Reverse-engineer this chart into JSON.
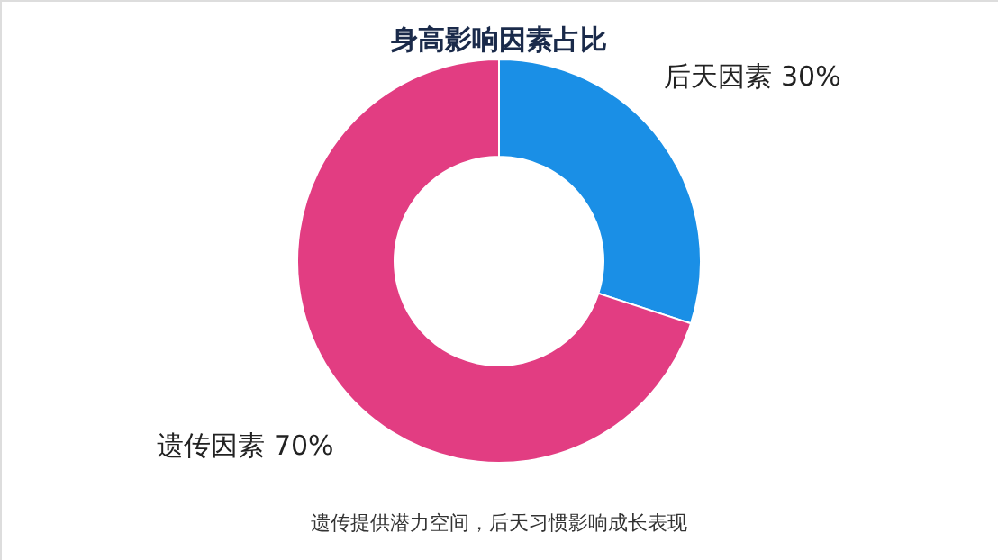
{
  "chart_data": {
    "type": "donut",
    "title": "身高影响因素占比",
    "categories": [
      "后天因素",
      "遗传因素"
    ],
    "values": [
      30,
      70
    ],
    "value_labels": [
      "30%",
      "70%"
    ],
    "colors": [
      "#1a8fe6",
      "#e23d82"
    ],
    "legend": false,
    "annotations": [
      "遗传提供潜力空间，后天习惯影响成长表现"
    ]
  }
}
